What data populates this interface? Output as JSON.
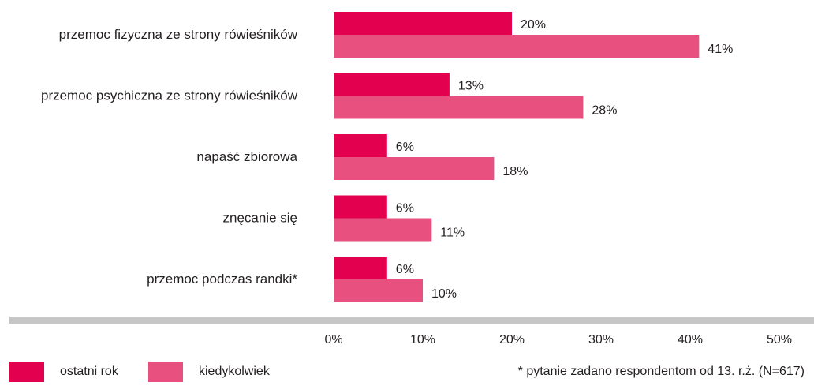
{
  "chart_data": {
    "type": "bar",
    "orientation": "horizontal",
    "categories": [
      "przemoc fizyczna ze strony rówieśników",
      "przemoc psychiczna ze strony rówieśników",
      "napaść zbiorowa",
      "znęcanie się",
      "przemoc podczas randki*"
    ],
    "series": [
      {
        "name": "ostatni rok",
        "color": "#e2004f",
        "values": [
          20,
          13,
          6,
          6,
          6
        ],
        "labels": [
          "20%",
          "13%",
          "6%",
          "6%",
          "6%"
        ]
      },
      {
        "name": "kiedykolwiek",
        "color": "#e8507f",
        "values": [
          41,
          28,
          18,
          11,
          10
        ],
        "labels": [
          "41%",
          "28%",
          "18%",
          "11%",
          "10%"
        ]
      }
    ],
    "xlim": [
      0,
      53
    ],
    "xticks": [
      0,
      10,
      20,
      30,
      40,
      50
    ],
    "xtick_labels": [
      "0%",
      "10%",
      "20%",
      "30%",
      "40%",
      "50%"
    ],
    "grid": false,
    "legend_position": "bottom-left"
  },
  "footnote": "* pytanie zadano respondentom od 13. r.ż. (N=617)"
}
